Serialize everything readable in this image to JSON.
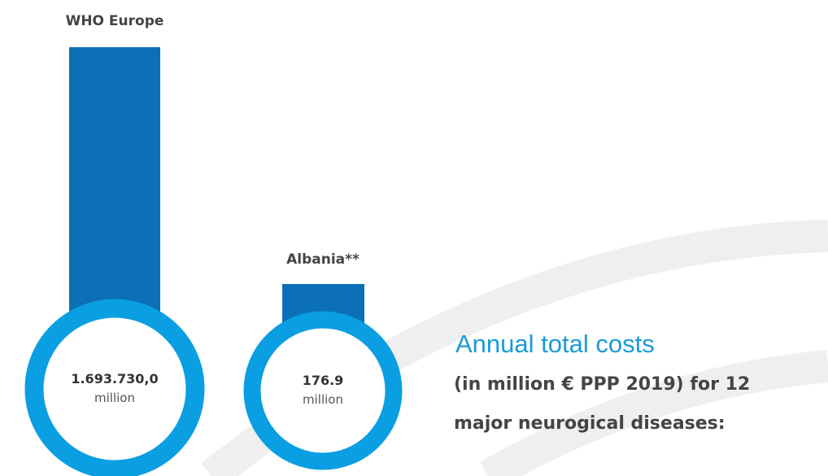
{
  "items": [
    {
      "label": "WHO Europe",
      "value": "1.693.730,0",
      "unit": "million"
    },
    {
      "label": "Albania**",
      "value": "176.9",
      "unit": "million"
    }
  ],
  "heading": "Annual total costs",
  "subtitle_lines": [
    "(in million € PPP 2019) for 12",
    "major neurogical diseases:"
  ]
}
